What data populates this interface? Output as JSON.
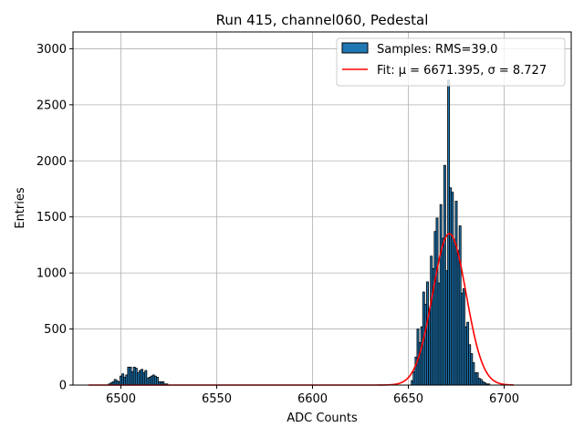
{
  "chart_data": {
    "type": "bar",
    "title": "Run 415, channel060, Pedestal",
    "xlabel": "ADC Counts",
    "ylabel": "Entries",
    "xlim": [
      6475,
      6735
    ],
    "ylim": [
      0,
      3150
    ],
    "xticks": [
      6500,
      6550,
      6600,
      6650,
      6700
    ],
    "yticks": [
      0,
      500,
      1000,
      1500,
      2000,
      2500,
      3000
    ],
    "grid": true,
    "legend": {
      "placement": "top-right",
      "entries": [
        {
          "label": "Samples: RMS=39.0",
          "kind": "patch",
          "color": "#1f77b4"
        },
        {
          "label": "Fit: μ = 6671.395, σ = 8.727",
          "kind": "line",
          "color": "#ff0000"
        }
      ]
    },
    "series": [
      {
        "name": "Samples: RMS=39.0",
        "kind": "histogram",
        "bin_width": 1,
        "color": "#1f77b4",
        "bins": [
          [
            6494,
            10
          ],
          [
            6495,
            20
          ],
          [
            6496,
            30
          ],
          [
            6497,
            50
          ],
          [
            6498,
            40
          ],
          [
            6499,
            30
          ],
          [
            6500,
            80
          ],
          [
            6501,
            100
          ],
          [
            6502,
            70
          ],
          [
            6503,
            90
          ],
          [
            6504,
            160
          ],
          [
            6505,
            160
          ],
          [
            6506,
            120
          ],
          [
            6507,
            160
          ],
          [
            6508,
            150
          ],
          [
            6509,
            110
          ],
          [
            6510,
            130
          ],
          [
            6511,
            140
          ],
          [
            6512,
            110
          ],
          [
            6513,
            130
          ],
          [
            6514,
            60
          ],
          [
            6515,
            70
          ],
          [
            6516,
            80
          ],
          [
            6517,
            90
          ],
          [
            6518,
            80
          ],
          [
            6519,
            70
          ],
          [
            6520,
            30
          ],
          [
            6521,
            30
          ],
          [
            6522,
            30
          ],
          [
            6523,
            10
          ],
          [
            6524,
            10
          ],
          [
            6652,
            40
          ],
          [
            6653,
            120
          ],
          [
            6654,
            250
          ],
          [
            6655,
            500
          ],
          [
            6656,
            380
          ],
          [
            6657,
            520
          ],
          [
            6658,
            830
          ],
          [
            6659,
            720
          ],
          [
            6660,
            920
          ],
          [
            6661,
            680
          ],
          [
            6662,
            1150
          ],
          [
            6663,
            1040
          ],
          [
            6664,
            1370
          ],
          [
            6665,
            1490
          ],
          [
            6666,
            910
          ],
          [
            6667,
            1610
          ],
          [
            6668,
            1310
          ],
          [
            6669,
            1960
          ],
          [
            6670,
            1020
          ],
          [
            6671,
            2720
          ],
          [
            6672,
            1760
          ],
          [
            6673,
            1720
          ],
          [
            6674,
            1270
          ],
          [
            6675,
            1640
          ],
          [
            6676,
            1200
          ],
          [
            6677,
            1420
          ],
          [
            6678,
            820
          ],
          [
            6679,
            860
          ],
          [
            6680,
            520
          ],
          [
            6681,
            560
          ],
          [
            6682,
            360
          ],
          [
            6683,
            280
          ],
          [
            6684,
            200
          ],
          [
            6685,
            110
          ],
          [
            6686,
            110
          ],
          [
            6687,
            60
          ],
          [
            6688,
            50
          ],
          [
            6689,
            30
          ],
          [
            6690,
            20
          ],
          [
            6691,
            10
          ],
          [
            6692,
            10
          ]
        ]
      },
      {
        "name": "Fit: μ = 6671.395, σ = 8.727",
        "kind": "gaussian-fit",
        "color": "#ff0000",
        "mu": 6671.395,
        "sigma": 8.727,
        "amplitude": 1350,
        "x_range": [
          6483,
          6705
        ]
      }
    ]
  }
}
